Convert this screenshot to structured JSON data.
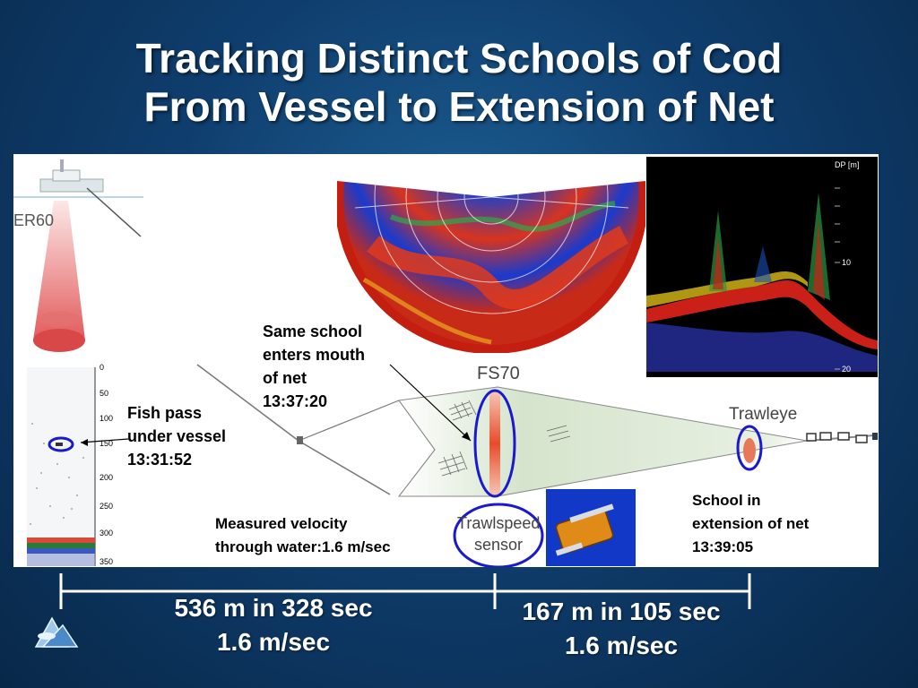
{
  "slide": {
    "title_line1": "Tracking Distinct Schools of Cod",
    "title_line2": "From Vessel to Extension of Net"
  },
  "diagram": {
    "er60_label": "ER60",
    "fs70_label": "FS70",
    "trawleye_label": "Trawleye",
    "trawlspeed_line1": "Trawlspeed",
    "trawlspeed_line2": "sensor",
    "echo_unit": "DP [m]",
    "echo_ticks": [
      "10",
      "20"
    ],
    "depth_ticks": [
      "0",
      "50",
      "100",
      "150",
      "200",
      "250",
      "300",
      "350"
    ]
  },
  "callouts": {
    "fish_pass": [
      "Fish pass",
      "under vessel",
      "13:31:52"
    ],
    "same_school": [
      "Same school",
      "enters mouth",
      "of net",
      "13:37:20"
    ],
    "velocity": [
      "Measured velocity",
      "through water:1.6 m/sec"
    ],
    "school_ext": [
      "School in",
      "extension of net",
      "13:39:05"
    ]
  },
  "timeline": {
    "seg1_line1": "536 m in 328 sec",
    "seg1_line2": "1.6 m/sec",
    "seg2_line1": "167 m in 105 sec",
    "seg2_line2": "1.6 m/sec"
  },
  "colors": {
    "highlight_blue": "#1a1acc",
    "beam_red": "#e04848",
    "net_green": "#d8e6cf"
  }
}
